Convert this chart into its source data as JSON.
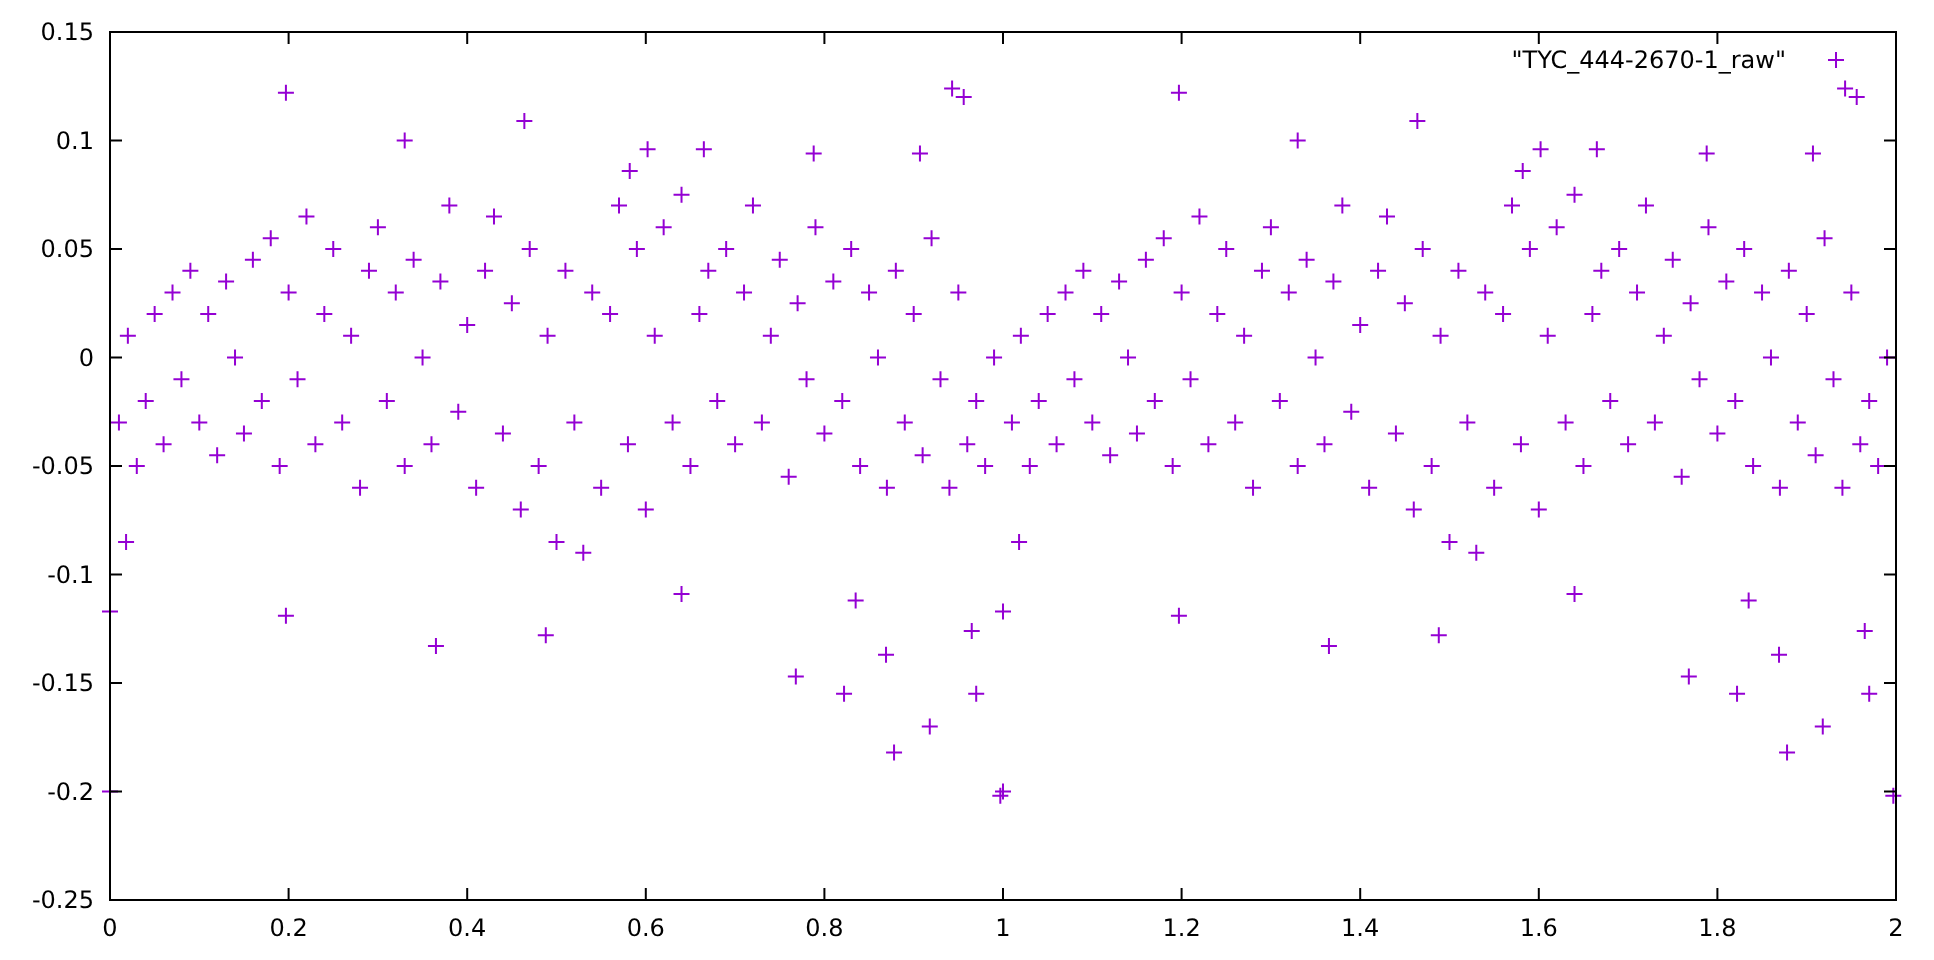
{
  "chart_data": {
    "type": "scatter",
    "xlim": [
      0,
      2
    ],
    "ylim": [
      -0.25,
      0.15
    ],
    "xticks": [
      0,
      0.2,
      0.4,
      0.6,
      0.8,
      1,
      1.2,
      1.4,
      1.6,
      1.8,
      2
    ],
    "yticks": [
      -0.25,
      -0.2,
      -0.15,
      -0.1,
      -0.05,
      0,
      0.05,
      0.1,
      0.15
    ],
    "grid": false,
    "legend": "top right",
    "marker": "cross",
    "series": [
      {
        "name": "\"TYC_444-2670-1_raw\"",
        "color": "#9400d3",
        "x": [
          0.01,
          0.02,
          0.03,
          0.04,
          0.05,
          0.06,
          0.07,
          0.08,
          0.09,
          0.1,
          0.11,
          0.12,
          0.13,
          0.14,
          0.15,
          0.16,
          0.17,
          0.18,
          0.19,
          0.2,
          0.21,
          0.22,
          0.23,
          0.24,
          0.25,
          0.26,
          0.27,
          0.28,
          0.29,
          0.3,
          0.31,
          0.32,
          0.33,
          0.34,
          0.35,
          0.36,
          0.37,
          0.38,
          0.39,
          0.4,
          0.41,
          0.42,
          0.43,
          0.44,
          0.45,
          0.46,
          0.47,
          0.48,
          0.49,
          0.5,
          0.51,
          0.52,
          0.53,
          0.54,
          0.55,
          0.56,
          0.57,
          0.58,
          0.59,
          0.6,
          0.61,
          0.62,
          0.63,
          0.64,
          0.65,
          0.66,
          0.67,
          0.68,
          0.69,
          0.7,
          0.71,
          0.72,
          0.73,
          0.74,
          0.75,
          0.76,
          0.77,
          0.78,
          0.79,
          0.8,
          0.81,
          0.82,
          0.83,
          0.84,
          0.85,
          0.86,
          0.87,
          0.88,
          0.89,
          0.9,
          0.91,
          0.92,
          0.93,
          0.94,
          0.95,
          0.96,
          0.97,
          0.98,
          0.99,
          0,
          0,
          0.018,
          0.197,
          0.197,
          0.33,
          0.365,
          0.464,
          0.488,
          0.582,
          0.602,
          0.64,
          0.665,
          0.768,
          0.788,
          0.822,
          0.835,
          0.869,
          0.878,
          0.907,
          0.918,
          0.943,
          0.956,
          0.965,
          0.97,
          0.997,
          1.01,
          1.02,
          1.03,
          1.04,
          1.05,
          1.06,
          1.07,
          1.08,
          1.09,
          1.1,
          1.11,
          1.12,
          1.13,
          1.14,
          1.15,
          1.16,
          1.17,
          1.18,
          1.19,
          1.2,
          1.21,
          1.22,
          1.23,
          1.24,
          1.25,
          1.26,
          1.27,
          1.28,
          1.29,
          1.3,
          1.31,
          1.32,
          1.33,
          1.34,
          1.35,
          1.36,
          1.37,
          1.38,
          1.39,
          1.4,
          1.41,
          1.42,
          1.43,
          1.44,
          1.45,
          1.46,
          1.47,
          1.48,
          1.49,
          1.5,
          1.51,
          1.52,
          1.53,
          1.54,
          1.55,
          1.56,
          1.57,
          1.58,
          1.59,
          1.6,
          1.61,
          1.62,
          1.63,
          1.64,
          1.65,
          1.66,
          1.67,
          1.68,
          1.69,
          1.7,
          1.71,
          1.72,
          1.73,
          1.74,
          1.75,
          1.76,
          1.77,
          1.78,
          1.79,
          1.8,
          1.81,
          1.82,
          1.83,
          1.84,
          1.85,
          1.86,
          1.87,
          1.88,
          1.89,
          1.9,
          1.91,
          1.92,
          1.93,
          1.94,
          1.95,
          1.96,
          1.97,
          1.98,
          1.99,
          1,
          1,
          1.018,
          1.197,
          1.197,
          1.33,
          1.365,
          1.464,
          1.488,
          1.582,
          1.602,
          1.64,
          1.665,
          1.768,
          1.788,
          1.822,
          1.835,
          1.869,
          1.878,
          1.907,
          1.918,
          1.943,
          1.956,
          1.965,
          1.97,
          1.997
        ],
        "values": [
          -0.03,
          0.01,
          -0.05,
          -0.02,
          0.02,
          -0.04,
          0.03,
          -0.01,
          0.04,
          -0.03,
          0.02,
          -0.045,
          0.035,
          0,
          -0.035,
          0.045,
          -0.02,
          0.055,
          -0.05,
          0.03,
          -0.01,
          0.065,
          -0.04,
          0.02,
          0.05,
          -0.03,
          0.01,
          -0.06,
          0.04,
          0.06,
          -0.02,
          0.03,
          -0.05,
          0.045,
          0,
          -0.04,
          0.035,
          0.07,
          -0.025,
          0.015,
          -0.06,
          0.04,
          0.065,
          -0.035,
          0.025,
          -0.07,
          0.05,
          -0.05,
          0.01,
          -0.085,
          0.04,
          -0.03,
          -0.09,
          0.03,
          -0.06,
          0.02,
          0.07,
          -0.04,
          0.05,
          -0.07,
          0.01,
          0.06,
          -0.03,
          0.075,
          -0.05,
          0.02,
          0.04,
          -0.02,
          0.05,
          -0.04,
          0.03,
          0.07,
          -0.03,
          0.01,
          0.045,
          -0.055,
          0.025,
          -0.01,
          0.06,
          -0.035,
          0.035,
          -0.02,
          0.05,
          -0.05,
          0.03,
          0,
          -0.06,
          0.04,
          -0.03,
          0.02,
          -0.045,
          0.055,
          -0.01,
          -0.06,
          0.03,
          -0.04,
          -0.02,
          -0.05,
          0,
          -0.2,
          -0.117,
          -0.085,
          0.122,
          -0.119,
          0.1,
          -0.133,
          0.109,
          -0.128,
          0.086,
          0.096,
          -0.109,
          0.096,
          -0.147,
          0.094,
          -0.155,
          -0.112,
          -0.137,
          -0.182,
          0.094,
          -0.17,
          0.124,
          0.12,
          -0.126,
          -0.155,
          -0.202,
          -0.03,
          0.01,
          -0.05,
          -0.02,
          0.02,
          -0.04,
          0.03,
          -0.01,
          0.04,
          -0.03,
          0.02,
          -0.045,
          0.035,
          0,
          -0.035,
          0.045,
          -0.02,
          0.055,
          -0.05,
          0.03,
          -0.01,
          0.065,
          -0.04,
          0.02,
          0.05,
          -0.03,
          0.01,
          -0.06,
          0.04,
          0.06,
          -0.02,
          0.03,
          -0.05,
          0.045,
          0,
          -0.04,
          0.035,
          0.07,
          -0.025,
          0.015,
          -0.06,
          0.04,
          0.065,
          -0.035,
          0.025,
          -0.07,
          0.05,
          -0.05,
          0.01,
          -0.085,
          0.04,
          -0.03,
          -0.09,
          0.03,
          -0.06,
          0.02,
          0.07,
          -0.04,
          0.05,
          -0.07,
          0.01,
          0.06,
          -0.03,
          0.075,
          -0.05,
          0.02,
          0.04,
          -0.02,
          0.05,
          -0.04,
          0.03,
          0.07,
          -0.03,
          0.01,
          0.045,
          -0.055,
          0.025,
          -0.01,
          0.06,
          -0.035,
          0.035,
          -0.02,
          0.05,
          -0.05,
          0.03,
          0,
          -0.06,
          0.04,
          -0.03,
          0.02,
          -0.045,
          0.055,
          -0.01,
          -0.06,
          0.03,
          -0.04,
          -0.02,
          -0.05,
          0,
          -0.2,
          -0.117,
          -0.085,
          0.122,
          -0.119,
          0.1,
          -0.133,
          0.109,
          -0.128,
          0.086,
          0.096,
          -0.109,
          0.096,
          -0.147,
          0.094,
          -0.155,
          -0.112,
          -0.137,
          -0.182,
          0.094,
          -0.17,
          0.124,
          0.12,
          -0.126,
          -0.155,
          -0.202
        ]
      }
    ]
  }
}
